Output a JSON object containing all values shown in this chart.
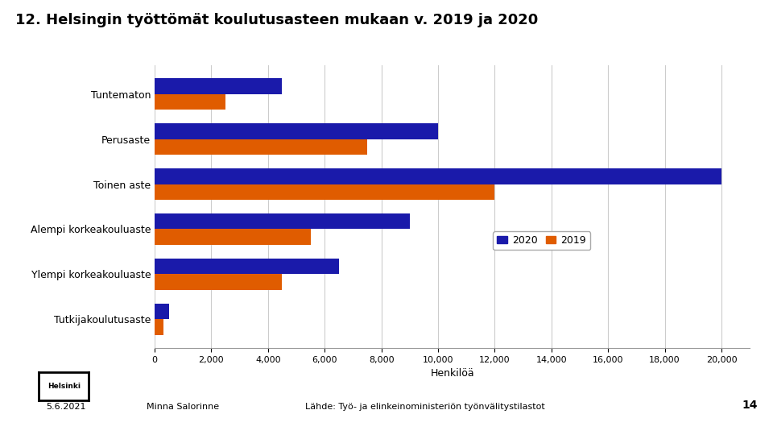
{
  "title": "12. Helsingin työttömät koulutusasteen mukaan v. 2019 ja 2020",
  "categories": [
    "Tuntematon",
    "Perusaste",
    "Toinen aste",
    "Alempi korkeakouluaste",
    "Ylempi korkeakouluaste",
    "Tutkijakoulutusaste"
  ],
  "values_2020": [
    4500,
    10000,
    20000,
    9000,
    6500,
    500
  ],
  "values_2019": [
    2500,
    7500,
    12000,
    5500,
    4500,
    300
  ],
  "color_2020": "#1a1aaa",
  "color_2019": "#e05c00",
  "xlabel": "Henkilöä",
  "xlim": [
    0,
    21000
  ],
  "xticks": [
    0,
    2000,
    4000,
    6000,
    8000,
    10000,
    12000,
    14000,
    16000,
    18000,
    20000
  ],
  "legend_labels": [
    "2020",
    "2019"
  ],
  "background_color": "#ffffff",
  "grid_color": "#cccccc",
  "title_fontsize": 13,
  "label_fontsize": 9,
  "tick_fontsize": 8,
  "footer_date": "5.6.2021",
  "footer_author": "Minna Salorinne",
  "footer_source": "Lähde: Työ- ja elinkeinoministeriön työnvälitystilastot",
  "footer_page": "14"
}
